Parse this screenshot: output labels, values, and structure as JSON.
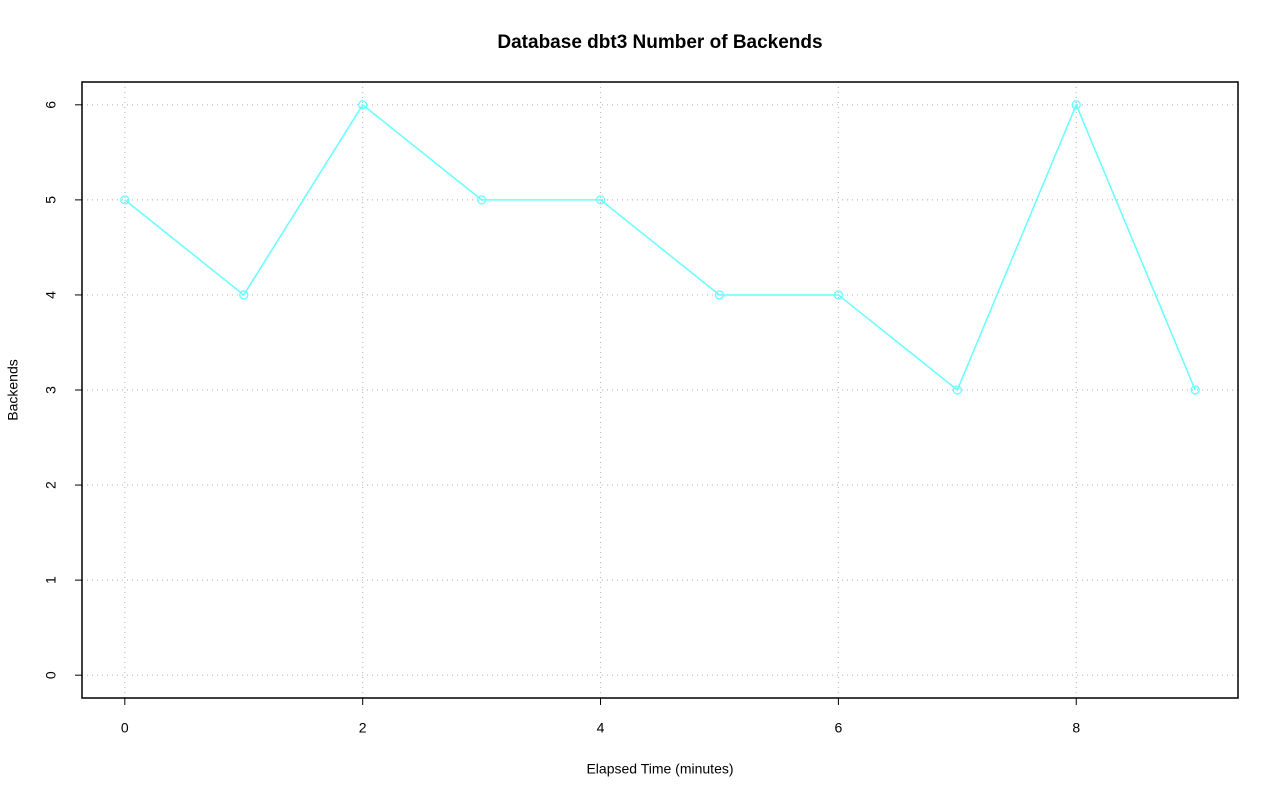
{
  "chart_data": {
    "type": "line",
    "title": "Database dbt3 Number of Backends",
    "x_label": "Elapsed Time (minutes)",
    "y_label": "Backends",
    "x": [
      0,
      1,
      2,
      3,
      4,
      5,
      6,
      7,
      8,
      9
    ],
    "values": [
      5,
      4,
      6,
      5,
      5,
      4,
      4,
      3,
      6,
      3
    ],
    "color": "#66ffff",
    "xlim": [
      -0.36,
      9.36
    ],
    "xticks": [
      0,
      2,
      4,
      6,
      8
    ],
    "ylim": [
      -0.24,
      6.24
    ],
    "yticks": [
      0,
      1,
      2,
      3,
      4,
      5,
      6
    ],
    "grid": true
  }
}
